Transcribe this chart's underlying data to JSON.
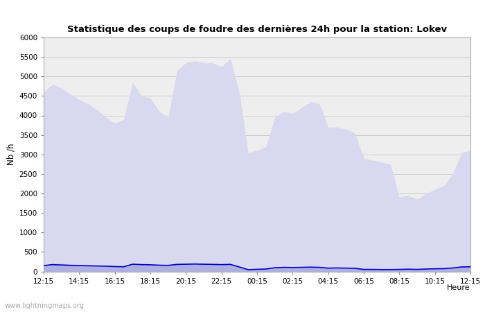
{
  "title": "Statistique des coups de foudre des dernières 24h pour la station: Lokev",
  "ylabel": "Nb /h",
  "xlabel": "Heure",
  "watermark": "www.lightningmaps.org",
  "xlim_labels": [
    "12:15",
    "14:15",
    "16:15",
    "18:15",
    "20:15",
    "22:15",
    "00:15",
    "02:15",
    "04:15",
    "06:15",
    "08:15",
    "10:15",
    "12:15"
  ],
  "ylim": [
    0,
    6000
  ],
  "yticks": [
    0,
    500,
    1000,
    1500,
    2000,
    2500,
    3000,
    3500,
    4000,
    4500,
    5000,
    5500,
    6000
  ],
  "bg_color": "#ffffff",
  "plot_bg_color": "#eeeeee",
  "grid_color": "#cccccc",
  "fill_total_color": "#d8d8f0",
  "fill_lokev_color": "#b0b0e0",
  "line_mean_color": "#0000cc",
  "total_foudre": [
    4600,
    4800,
    4700,
    4550,
    4400,
    4300,
    4150,
    3950,
    3800,
    3900,
    4850,
    4500,
    4450,
    4100,
    3950,
    5150,
    5350,
    5400,
    5350,
    5350,
    5250,
    5450,
    4600,
    3050,
    3100,
    3200,
    3950,
    4100,
    4050,
    4200,
    4350,
    4300,
    3700,
    3700,
    3650,
    3550,
    2900,
    2850,
    2800,
    2750,
    1900,
    1950,
    1850,
    2000,
    2100,
    2200,
    2500,
    3050,
    3100
  ],
  "lokev_foudre": [
    150,
    200,
    200,
    190,
    180,
    170,
    160,
    150,
    140,
    130,
    210,
    200,
    190,
    180,
    175,
    200,
    210,
    215,
    210,
    205,
    200,
    210,
    130,
    50,
    60,
    70,
    110,
    120,
    115,
    120,
    130,
    125,
    100,
    105,
    100,
    95,
    60,
    60,
    55,
    55,
    60,
    65,
    60,
    70,
    75,
    80,
    100,
    130,
    135
  ],
  "mean_line": [
    150,
    175,
    165,
    155,
    150,
    145,
    140,
    135,
    125,
    120,
    185,
    175,
    170,
    160,
    155,
    180,
    185,
    190,
    185,
    180,
    175,
    180,
    115,
    45,
    55,
    62,
    95,
    105,
    100,
    105,
    110,
    105,
    85,
    90,
    85,
    80,
    52,
    52,
    48,
    48,
    52,
    58,
    52,
    62,
    68,
    72,
    88,
    115,
    120
  ],
  "n_points": 49
}
